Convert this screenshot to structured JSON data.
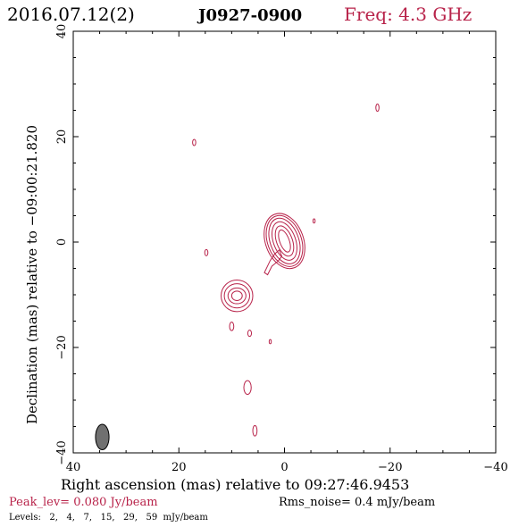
{
  "header": {
    "date": "2016.07.12(2)",
    "source": "J0927-0900",
    "freq": "Freq: 4.3 GHz"
  },
  "footer": {
    "peak": "Peak_lev=  0.080 Jy/beam",
    "rms": "Rms_noise=  0.4 mJy/beam",
    "levels": "Levels:   2,   4,   7,   15,   29,   59  mJy/beam"
  },
  "colors": {
    "contour": "#b8234a",
    "header_red": "#b8234a",
    "axis": "#000000",
    "beam_fill": "#707070"
  },
  "chart_data": {
    "type": "contour",
    "xlabel": "Right ascension (mas) relative to 09:27:46.9453",
    "ylabel": "Declination (mas) relative to −09:00:21.820",
    "xlim": [
      40,
      -40
    ],
    "ylim": [
      -40,
      40
    ],
    "xticks": [
      40,
      20,
      0,
      -20,
      -40
    ],
    "yticks": [
      -40,
      -20,
      0,
      20,
      40
    ],
    "xtick_labels": [
      "40",
      "20",
      "0",
      "−20",
      "−40"
    ],
    "ytick_labels": [
      "−40",
      "−20",
      "0",
      "20",
      "40"
    ],
    "levels_mJy": [
      2,
      4,
      7,
      15,
      29,
      59
    ],
    "peak_Jy_per_beam": 0.08,
    "rms_noise_mJy_per_beam": 0.4,
    "beam": {
      "x": 34.5,
      "y": -37.0,
      "major": 4.2,
      "minor": 1.6,
      "pa_deg": 0
    },
    "features": [
      {
        "name": "core",
        "x": 0.0,
        "y": 0.2,
        "rx": [
          0.9,
          1.5,
          2.1,
          2.7,
          3.2,
          3.6
        ],
        "ry": [
          2.2,
          3.0,
          3.8,
          4.5,
          5.0,
          5.4
        ],
        "angle": -20
      },
      {
        "name": "jet-knot",
        "x": 9.0,
        "y": -10.2,
        "rx": [
          1.0,
          1.7,
          2.4,
          3.0
        ],
        "ry": [
          0.9,
          1.5,
          2.3,
          3.0
        ],
        "angle": 0
      },
      {
        "name": "blob",
        "x": 17.1,
        "y": 18.9,
        "rx": [
          0.3
        ],
        "ry": [
          0.6
        ],
        "angle": 0
      },
      {
        "name": "blob",
        "x": -17.6,
        "y": 25.5,
        "rx": [
          0.3
        ],
        "ry": [
          0.7
        ],
        "angle": 0
      },
      {
        "name": "blob",
        "x": -5.6,
        "y": 4.0,
        "rx": [
          0.2
        ],
        "ry": [
          0.4
        ],
        "angle": 0
      },
      {
        "name": "blob",
        "x": 14.8,
        "y": -2.0,
        "rx": [
          0.3
        ],
        "ry": [
          0.6
        ],
        "angle": 0
      },
      {
        "name": "blob",
        "x": 10.0,
        "y": -16.0,
        "rx": [
          0.4
        ],
        "ry": [
          0.8
        ],
        "angle": 0
      },
      {
        "name": "blob",
        "x": 6.6,
        "y": -17.3,
        "rx": [
          0.35
        ],
        "ry": [
          0.6
        ],
        "angle": 0
      },
      {
        "name": "blob",
        "x": 2.7,
        "y": -18.9,
        "rx": [
          0.2
        ],
        "ry": [
          0.4
        ],
        "angle": 0
      },
      {
        "name": "blob",
        "x": 7.0,
        "y": -27.6,
        "rx": [
          0.7
        ],
        "ry": [
          1.3
        ],
        "angle": 0
      },
      {
        "name": "blob",
        "x": 5.6,
        "y": -35.8,
        "rx": [
          0.4
        ],
        "ry": [
          1.0
        ],
        "angle": 0
      }
    ],
    "jet_outline": [
      [
        2.4,
        -4.6
      ],
      [
        3.2,
        -6.2
      ],
      [
        3.8,
        -5.8
      ],
      [
        2.7,
        -3.5
      ],
      [
        1.8,
        -2.2
      ],
      [
        1.0,
        -1.5
      ],
      [
        0.5,
        -2.7
      ],
      [
        1.2,
        -3.6
      ]
    ]
  }
}
